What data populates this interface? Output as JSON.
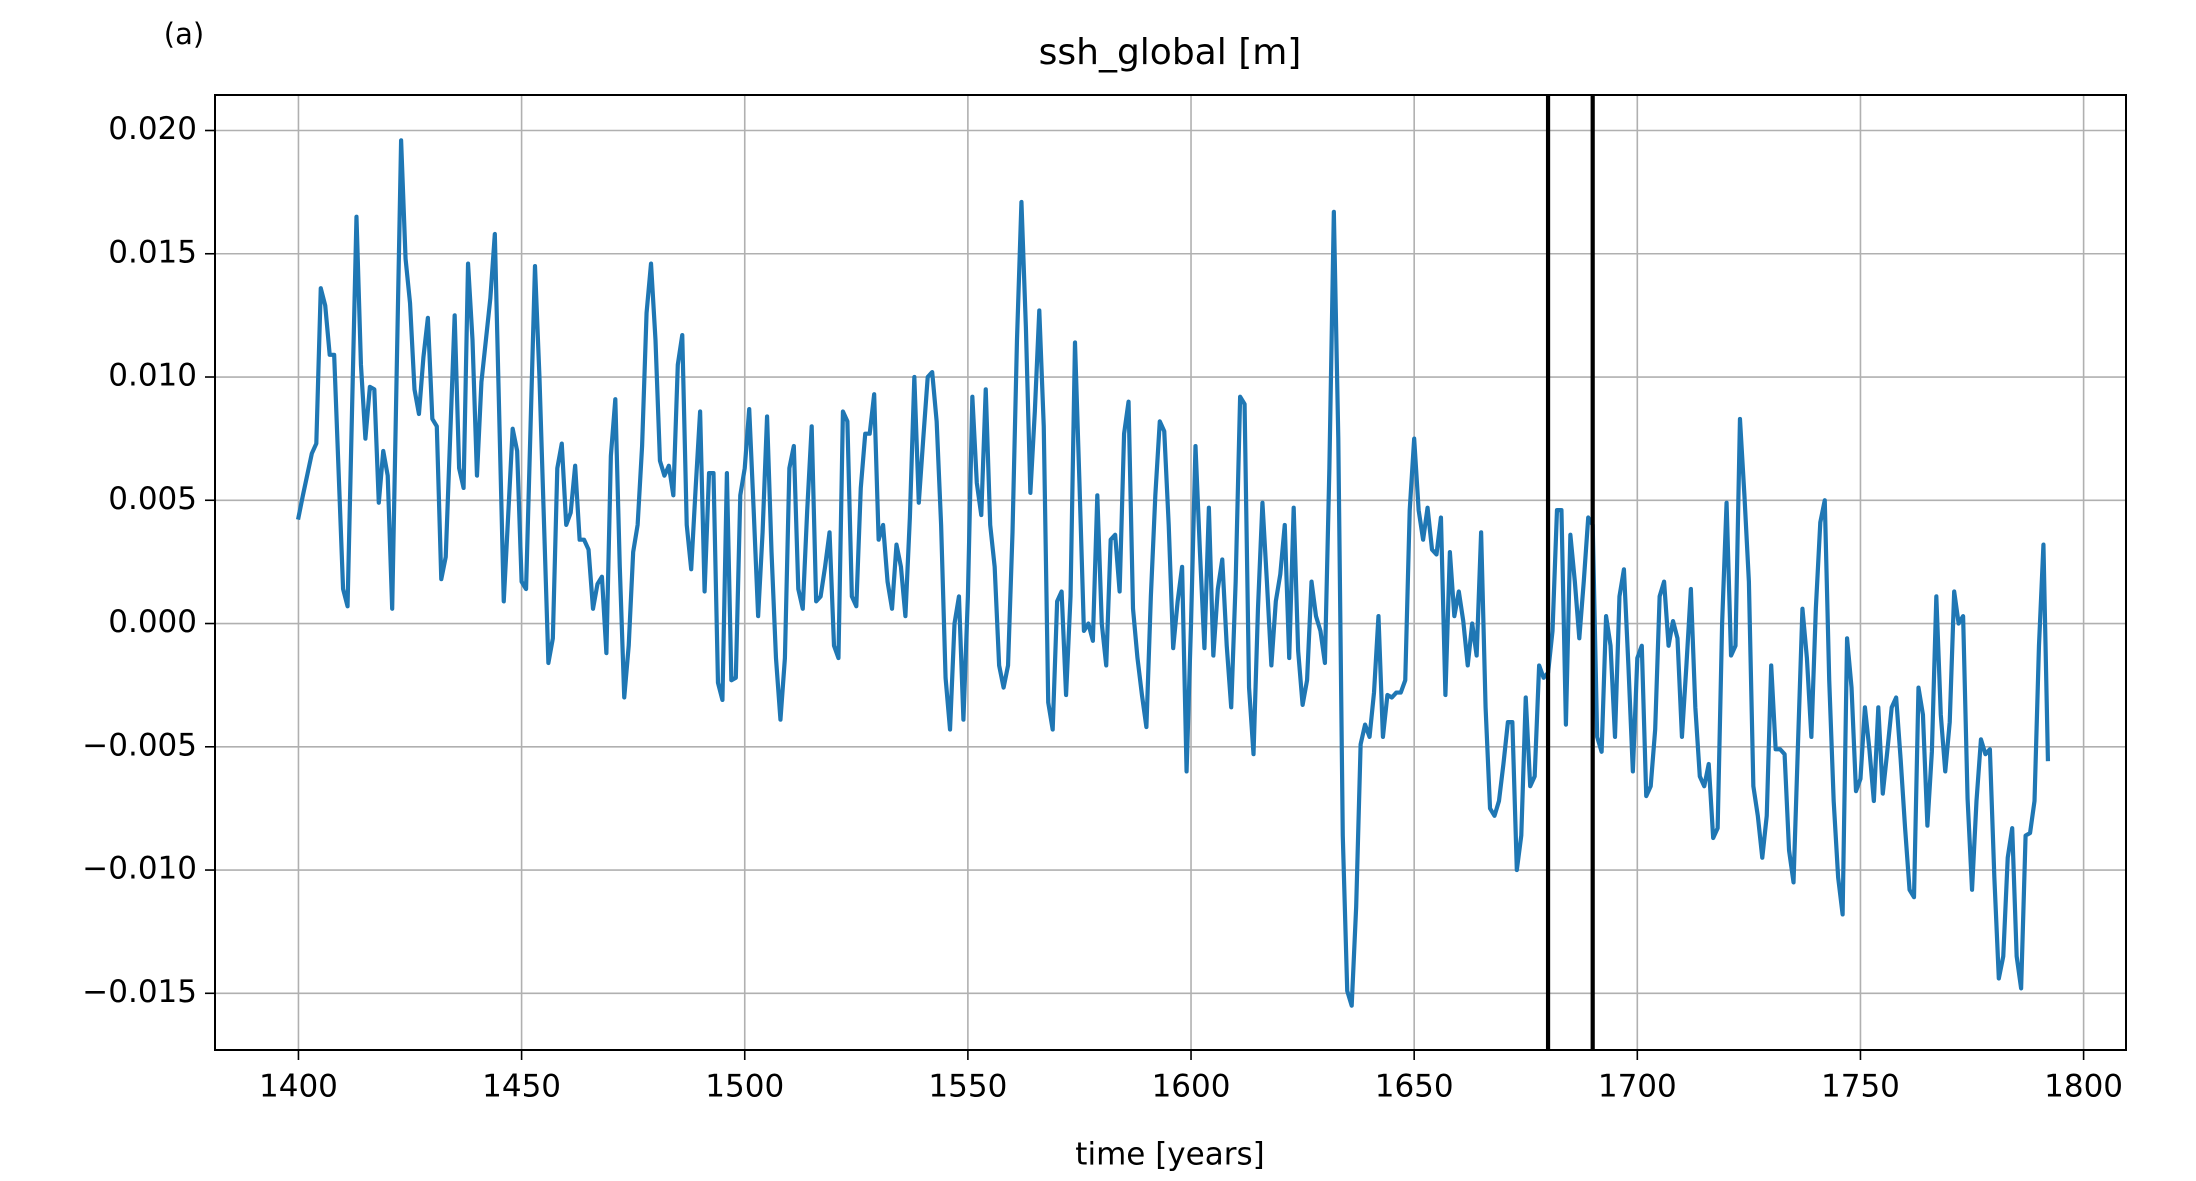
{
  "chart_data": {
    "type": "line",
    "panel_label": "(a)",
    "title": "ssh_global [m]",
    "x_label": "time [years]",
    "x": [
      1400,
      1401,
      1403,
      1404,
      1405,
      1406,
      1407,
      1408,
      1410,
      1411,
      1413,
      1414,
      1415,
      1416,
      1417,
      1418,
      1419,
      1420,
      1421,
      1423,
      1424,
      1425,
      1426,
      1427,
      1428,
      1429,
      1430,
      1431,
      1432,
      1433,
      1435,
      1436,
      1437,
      1438,
      1439,
      1440,
      1441,
      1443,
      1444,
      1446,
      1448,
      1449,
      1450,
      1451,
      1453,
      1454,
      1456,
      1457,
      1458,
      1459,
      1460,
      1461,
      1462,
      1463,
      1464,
      1465,
      1466,
      1467,
      1468,
      1469,
      1470,
      1471,
      1472,
      1473,
      1474,
      1475,
      1476,
      1477,
      1478,
      1479,
      1480,
      1481,
      1482,
      1483,
      1484,
      1485,
      1486,
      1487,
      1488,
      1489,
      1490,
      1491,
      1492,
      1493,
      1494,
      1495,
      1496,
      1497,
      1498,
      1499,
      1500,
      1501,
      1502,
      1503,
      1504,
      1505,
      1506,
      1507,
      1508,
      1509,
      1510,
      1511,
      1512,
      1513,
      1514,
      1515,
      1516,
      1517,
      1518,
      1519,
      1520,
      1521,
      1522,
      1523,
      1524,
      1525,
      1526,
      1527,
      1528,
      1529,
      1530,
      1531,
      1532,
      1533,
      1534,
      1535,
      1536,
      1537,
      1538,
      1539,
      1540,
      1541,
      1542,
      1543,
      1544,
      1545,
      1546,
      1547,
      1548,
      1549,
      1550,
      1551,
      1552,
      1553,
      1554,
      1555,
      1556,
      1557,
      1558,
      1559,
      1560,
      1561,
      1562,
      1563,
      1564,
      1565,
      1566,
      1567,
      1568,
      1569,
      1570,
      1571,
      1572,
      1573,
      1574,
      1575,
      1576,
      1577,
      1578,
      1579,
      1580,
      1581,
      1582,
      1583,
      1584,
      1585,
      1586,
      1587,
      1588,
      1589,
      1590,
      1591,
      1592,
      1593,
      1594,
      1595,
      1596,
      1597,
      1598,
      1599,
      1600,
      1601,
      1602,
      1603,
      1604,
      1605,
      1606,
      1607,
      1608,
      1609,
      1610,
      1611,
      1612,
      1613,
      1614,
      1615,
      1616,
      1617,
      1618,
      1619,
      1620,
      1621,
      1622,
      1623,
      1624,
      1625,
      1626,
      1627,
      1628,
      1629,
      1630,
      1631,
      1632,
      1633,
      1634,
      1635,
      1636,
      1637,
      1638,
      1639,
      1640,
      1641,
      1642,
      1643,
      1644,
      1645,
      1646,
      1647,
      1648,
      1649,
      1650,
      1651,
      1652,
      1653,
      1654,
      1655,
      1656,
      1657,
      1658,
      1659,
      1660,
      1661,
      1662,
      1663,
      1664,
      1665,
      1666,
      1667,
      1668,
      1669,
      1670,
      1671,
      1672,
      1673,
      1674,
      1675,
      1676,
      1677,
      1678,
      1679,
      1680,
      1681,
      1682,
      1683,
      1684,
      1685,
      1686,
      1687,
      1688,
      1689,
      1690,
      1691,
      1692,
      1693,
      1694,
      1695,
      1696,
      1697,
      1698,
      1699,
      1700,
      1701,
      1702,
      1703,
      1704,
      1705,
      1706,
      1707,
      1708,
      1709,
      1710,
      1711,
      1712,
      1713,
      1714,
      1715,
      1716,
      1717,
      1718,
      1719,
      1720,
      1721,
      1722,
      1723,
      1724,
      1725,
      1726,
      1727,
      1728,
      1729,
      1730,
      1731,
      1732,
      1733,
      1734,
      1735,
      1736,
      1737,
      1738,
      1739,
      1740,
      1741,
      1742,
      1743,
      1744,
      1745,
      1746,
      1747,
      1748,
      1749,
      1750,
      1751,
      1752,
      1753,
      1754,
      1755,
      1756,
      1757,
      1758,
      1759,
      1760,
      1761,
      1762,
      1763,
      1764,
      1765,
      1766,
      1767,
      1768,
      1769,
      1770,
      1771,
      1772,
      1773,
      1774,
      1775,
      1776,
      1777,
      1778,
      1779,
      1780,
      1781,
      1782,
      1783,
      1784,
      1785,
      1786,
      1787,
      1788,
      1789,
      1790,
      1791,
      1792
    ],
    "series": [
      {
        "color": "#1f77b4",
        "values": [
          0.0043,
          0.0052,
          0.0069,
          0.0073,
          0.0136,
          0.0129,
          0.0109,
          0.0109,
          0.0014,
          0.0007,
          0.0165,
          0.0105,
          0.0075,
          0.0096,
          0.0095,
          0.0049,
          0.007,
          0.006,
          0.0006,
          0.0196,
          0.0148,
          0.013,
          0.0095,
          0.0085,
          0.0108,
          0.0124,
          0.0083,
          0.008,
          0.0018,
          0.0027,
          0.0125,
          0.0063,
          0.0055,
          0.0146,
          0.0115,
          0.006,
          0.0098,
          0.0132,
          0.0158,
          0.0009,
          0.0079,
          0.007,
          0.0017,
          0.0014,
          0.0145,
          0.01,
          -0.0016,
          -0.0006,
          0.0063,
          0.0073,
          0.004,
          0.0045,
          0.0064,
          0.0034,
          0.0034,
          0.003,
          0.0006,
          0.0016,
          0.0019,
          -0.0012,
          0.0068,
          0.0091,
          0.0023,
          -0.003,
          -0.0009,
          0.0029,
          0.004,
          0.0072,
          0.0126,
          0.0146,
          0.0115,
          0.0066,
          0.006,
          0.0064,
          0.0052,
          0.0105,
          0.0117,
          0.004,
          0.0022,
          0.0055,
          0.0086,
          0.0013,
          0.0061,
          0.0061,
          -0.0024,
          -0.0031,
          0.0061,
          -0.0023,
          -0.0022,
          0.0052,
          0.0063,
          0.0087,
          0.0046,
          0.0003,
          0.0037,
          0.0084,
          0.0029,
          -0.0014,
          -0.0039,
          -0.0014,
          0.0063,
          0.0072,
          0.0014,
          0.0006,
          0.0046,
          0.008,
          0.0009,
          0.0011,
          0.0023,
          0.0037,
          -0.0009,
          -0.0014,
          0.0086,
          0.0082,
          0.0011,
          0.0007,
          0.0055,
          0.0077,
          0.0077,
          0.0093,
          0.0034,
          0.004,
          0.0017,
          0.0006,
          0.0032,
          0.0023,
          0.0003,
          0.0043,
          0.01,
          0.0049,
          0.0075,
          0.01,
          0.0102,
          0.0082,
          0.004,
          -0.0022,
          -0.0043,
          0,
          0.0011,
          -0.0039,
          0.0011,
          0.0092,
          0.0057,
          0.0044,
          0.0095,
          0.004,
          0.0023,
          -0.0017,
          -0.0026,
          -0.0017,
          0.0037,
          0.0115,
          0.0171,
          0.012,
          0.0053,
          0.0086,
          0.0127,
          0.008,
          -0.0032,
          -0.0043,
          0.0009,
          0.0013,
          -0.0029,
          0.0011,
          0.0114,
          0.0057,
          -0.0003,
          0,
          -0.0007,
          0.0052,
          0,
          -0.0017,
          0.0034,
          0.0036,
          0.0013,
          0.0077,
          0.009,
          0.0006,
          -0.0014,
          -0.0029,
          -0.0042,
          0.0011,
          0.0052,
          0.0082,
          0.0078,
          0.004,
          -0.001,
          0.0009,
          0.0023,
          -0.006,
          0,
          0.0072,
          0.0029,
          -0.001,
          0.0047,
          -0.0013,
          0.0014,
          0.0026,
          -0.0009,
          -0.0034,
          0.0017,
          0.0092,
          0.0089,
          -0.0026,
          -0.0053,
          0.0006,
          0.0049,
          0.0017,
          -0.0017,
          0.0009,
          0.002,
          0.004,
          -0.0014,
          0.0047,
          -0.0011,
          -0.0033,
          -0.0023,
          0.0017,
          0.0003,
          -0.0003,
          -0.0016,
          0.0063,
          0.0167,
          0.0075,
          -0.0086,
          -0.0149,
          -0.0155,
          -0.0115,
          -0.0049,
          -0.0041,
          -0.0046,
          -0.0028,
          0.0003,
          -0.0046,
          -0.0029,
          -0.003,
          -0.0028,
          -0.0028,
          -0.0023,
          0.0046,
          0.0075,
          0.0046,
          0.0034,
          0.0047,
          0.003,
          0.0028,
          0.0043,
          -0.0029,
          0.0029,
          0.0003,
          0.0013,
          0.0001,
          -0.0017,
          0,
          -0.0013,
          0.0037,
          -0.0034,
          -0.0075,
          -0.0078,
          -0.0072,
          -0.0057,
          -0.004,
          -0.004,
          -0.01,
          -0.0086,
          -0.003,
          -0.0066,
          -0.0062,
          -0.0017,
          -0.0022,
          -0.002,
          -0.0003,
          0.0046,
          0.0046,
          -0.0041,
          0.0036,
          0.0017,
          -0.0006,
          0.0017,
          0.0043,
          0.004,
          -0.0046,
          -0.0052,
          0.0003,
          -0.0009,
          -0.0046,
          0.0011,
          0.0022,
          -0.0017,
          -0.006,
          -0.0014,
          -0.0009,
          -0.007,
          -0.0066,
          -0.0043,
          0.0011,
          0.0017,
          -0.0009,
          0.0001,
          -0.0006,
          -0.0046,
          -0.0017,
          0.0014,
          -0.0034,
          -0.0062,
          -0.0066,
          -0.0057,
          -0.0087,
          -0.0083,
          0,
          0.0049,
          -0.0013,
          -0.0009,
          0.0083,
          0.0052,
          0.0017,
          -0.0066,
          -0.0078,
          -0.0095,
          -0.0078,
          -0.0017,
          -0.0051,
          -0.0051,
          -0.0053,
          -0.0092,
          -0.0105,
          -0.0049,
          0.0006,
          -0.0014,
          -0.0046,
          0.0006,
          0.0041,
          0.005,
          -0.0023,
          -0.0072,
          -0.0103,
          -0.0118,
          -0.0006,
          -0.0026,
          -0.0068,
          -0.0063,
          -0.0034,
          -0.0051,
          -0.0072,
          -0.0034,
          -0.0069,
          -0.0052,
          -0.0034,
          -0.003,
          -0.0055,
          -0.0083,
          -0.0108,
          -0.0111,
          -0.0026,
          -0.0037,
          -0.0082,
          -0.0052,
          0.0011,
          -0.0037,
          -0.006,
          -0.004,
          0.0013,
          0,
          0.0003,
          -0.0071,
          -0.0108,
          -0.0072,
          -0.0047,
          -0.0053,
          -0.0051,
          -0.0103,
          -0.0144,
          -0.0135,
          -0.0095,
          -0.0083,
          -0.0135,
          -0.0148,
          -0.0086,
          -0.0085,
          -0.0072,
          -0.0009,
          0.0032,
          -0.0055
        ]
      }
    ],
    "vlines": [
      1680,
      1690
    ],
    "vline_color": "#000000",
    "xlim": [
      1381.3,
      1809.5
    ],
    "ylim": [
      -0.0173,
      0.02144
    ],
    "xticks": [
      1400,
      1450,
      1500,
      1550,
      1600,
      1650,
      1700,
      1750,
      1800
    ],
    "yticks": [
      {
        "value": -0.015,
        "label": "−0.015"
      },
      {
        "value": -0.01,
        "label": "−0.010"
      },
      {
        "value": -0.005,
        "label": "−0.005"
      },
      {
        "value": 0,
        "label": "0.000"
      },
      {
        "value": 0.005,
        "label": "0.005"
      },
      {
        "value": 0.01,
        "label": "0.010"
      },
      {
        "value": 0.015,
        "label": "0.015"
      },
      {
        "value": 0.02,
        "label": "0.020"
      }
    ],
    "grid": true
  }
}
